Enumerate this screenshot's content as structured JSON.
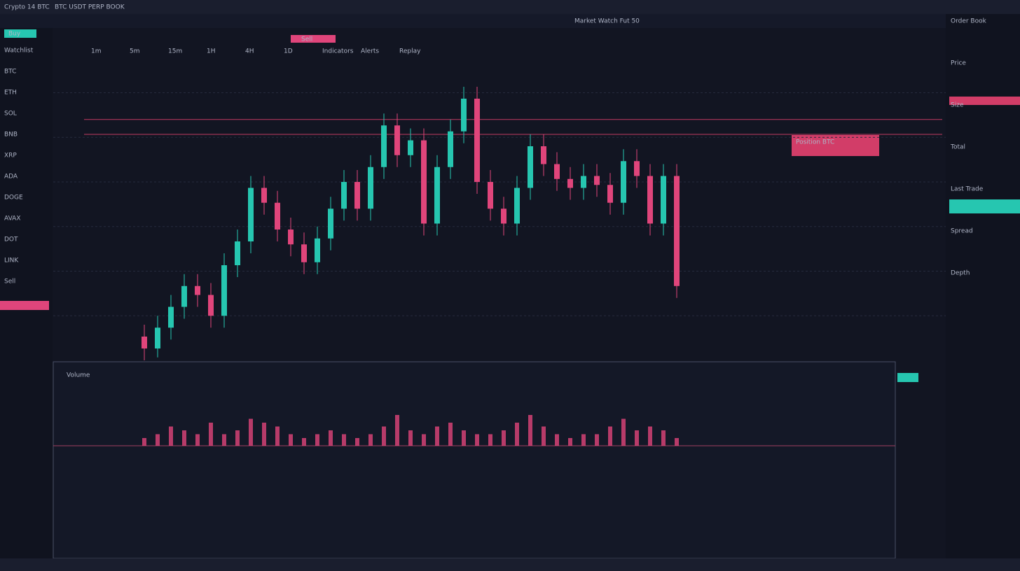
{
  "header": {
    "app": "Crypto 14 BTC",
    "pair": "BTC USDT PERP BOOK",
    "center": "Market Watch Fut 50"
  },
  "toolbar": [
    "1m",
    "5m",
    "15m",
    "1H",
    "4H",
    "1D",
    "Indicators",
    "Alerts",
    "Replay"
  ],
  "sidebar": [
    "Watchlist",
    "BTC",
    "ETH",
    "SOL",
    "BNB",
    "XRP",
    "ADA",
    "DOGE",
    "AVAX",
    "DOT",
    "LINK",
    "Sell"
  ],
  "orders": {
    "buy": "Buy",
    "sell": "Sell",
    "position": "Position BTC"
  },
  "right_panel": [
    "Order Book",
    "Price",
    "Size",
    "Total",
    "Last Trade",
    "Spread",
    "Depth"
  ],
  "volume_title": "Volume",
  "chart_data": {
    "type": "candlestick",
    "candles": [
      [
        8,
        12,
        0,
        4
      ],
      [
        4,
        15,
        1,
        11
      ],
      [
        11,
        22,
        7,
        18
      ],
      [
        18,
        29,
        14,
        25
      ],
      [
        25,
        29,
        18,
        22
      ],
      [
        22,
        26,
        11,
        15
      ],
      [
        15,
        36,
        11,
        32
      ],
      [
        32,
        44,
        28,
        40
      ],
      [
        40,
        62,
        36,
        58
      ],
      [
        58,
        62,
        49,
        53
      ],
      [
        53,
        57,
        40,
        44
      ],
      [
        44,
        48,
        35,
        39
      ],
      [
        39,
        43,
        29,
        33
      ],
      [
        33,
        45,
        29,
        41
      ],
      [
        41,
        55,
        37,
        51
      ],
      [
        51,
        64,
        47,
        60
      ],
      [
        60,
        64,
        47,
        51
      ],
      [
        51,
        69,
        47,
        65
      ],
      [
        65,
        83,
        61,
        79
      ],
      [
        79,
        83,
        65,
        69
      ],
      [
        69,
        78,
        65,
        74
      ],
      [
        74,
        78,
        42,
        46
      ],
      [
        46,
        69,
        42,
        65
      ],
      [
        65,
        81,
        61,
        77
      ],
      [
        77,
        92,
        73,
        88
      ],
      [
        88,
        92,
        56,
        60
      ],
      [
        60,
        64,
        47,
        51
      ],
      [
        51,
        55,
        42,
        46
      ],
      [
        46,
        62,
        42,
        58
      ],
      [
        58,
        76,
        54,
        72
      ],
      [
        72,
        76,
        62,
        66
      ],
      [
        66,
        70,
        57,
        61
      ],
      [
        61,
        65,
        54,
        58
      ],
      [
        58,
        66,
        54,
        62
      ],
      [
        62,
        66,
        55,
        59
      ],
      [
        59,
        63,
        49,
        53
      ],
      [
        53,
        71,
        49,
        67
      ],
      [
        67,
        71,
        58,
        62
      ],
      [
        62,
        66,
        42,
        46
      ],
      [
        46,
        66,
        42,
        62
      ],
      [
        62,
        66,
        21,
        25
      ]
    ],
    "ylim": [
      0,
      100
    ],
    "up_color": "#26c6b0",
    "down_color": "#e0457b",
    "levels": [
      81,
      76
    ],
    "volume": [
      2,
      3,
      5,
      4,
      3,
      6,
      3,
      4,
      7,
      6,
      5,
      3,
      2,
      3,
      4,
      3,
      2,
      3,
      5,
      8,
      4,
      3,
      5,
      6,
      4,
      3,
      3,
      4,
      6,
      8,
      5,
      3,
      2,
      3,
      3,
      5,
      7,
      4,
      5,
      4,
      2
    ],
    "volume_ylim": [
      0,
      10
    ]
  }
}
